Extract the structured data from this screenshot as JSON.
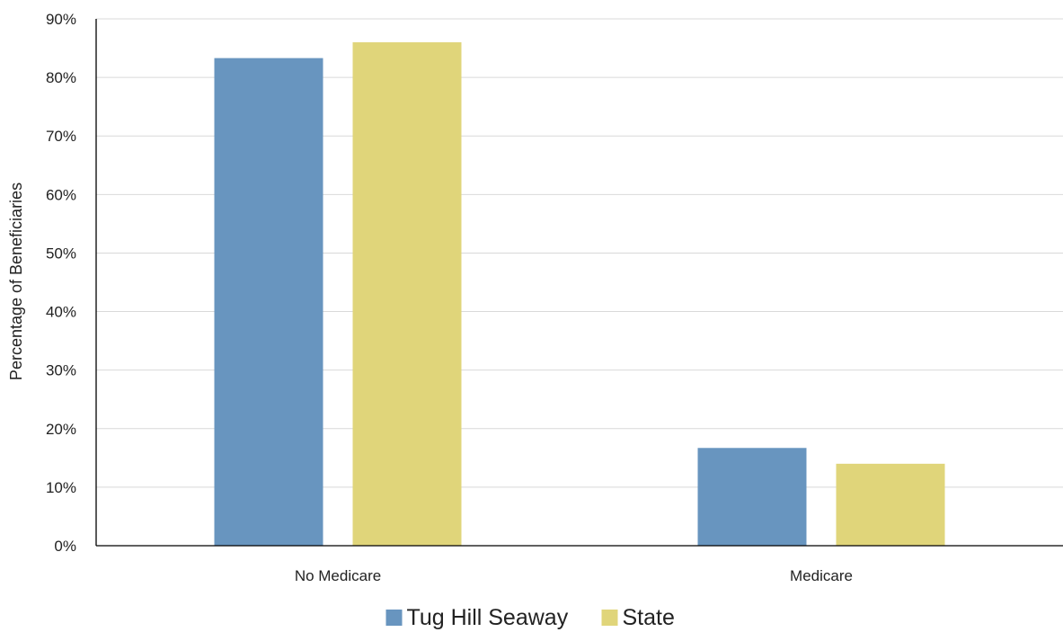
{
  "chart_data": {
    "type": "bar",
    "categories": [
      "No Medicare",
      "Medicare"
    ],
    "series": [
      {
        "name": "Tug Hill Seaway",
        "values": [
          83.3,
          16.7
        ],
        "color": "#6895bf"
      },
      {
        "name": "State",
        "values": [
          86.0,
          14.0
        ],
        "color": "#e0d57a"
      }
    ],
    "title": "",
    "xlabel": "",
    "ylabel": "Percentage of Beneficiaries",
    "ylim": [
      0,
      90
    ],
    "yticks": [
      0,
      10,
      20,
      30,
      40,
      50,
      60,
      70,
      80,
      90
    ],
    "ytick_labels": [
      "0%",
      "10%",
      "20%",
      "30%",
      "40%",
      "50%",
      "60%",
      "70%",
      "80%",
      "90%"
    ],
    "grid": true,
    "legend_position": "bottom-center"
  }
}
